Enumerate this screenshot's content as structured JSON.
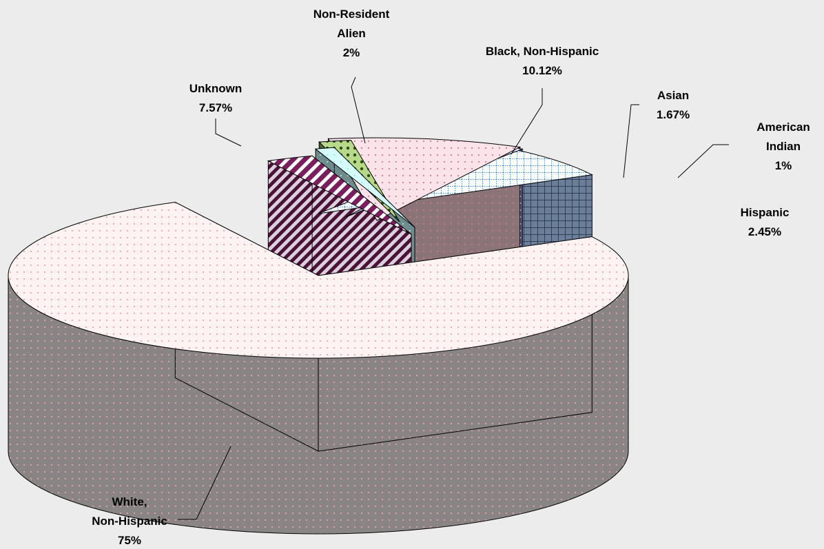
{
  "chart_data": {
    "type": "pie",
    "title": "",
    "slices": [
      {
        "label_lines": [
          "White,",
          "Non-Hispanic",
          "75%"
        ],
        "category": "White, Non-Hispanic",
        "value": 75,
        "value_label": "75%",
        "fill": "#fdf3f3",
        "dot": "#e7a3a8",
        "side": "#8a8585"
      },
      {
        "label_lines": [
          "Hispanic",
          "2.45%"
        ],
        "category": "Hispanic",
        "value": 2.45,
        "value_label": "2.45%",
        "fill": "#7a1f5e",
        "dot": "#ffffff",
        "side": "#4a1238"
      },
      {
        "label_lines": [
          "American",
          "Indian",
          "1%"
        ],
        "category": "American Indian",
        "value": 1,
        "value_label": "1%",
        "fill": "#d5fbfb",
        "dot": "#9be6ea",
        "side": "#6f8b8b"
      },
      {
        "label_lines": [
          "Asian",
          "1.67%"
        ],
        "category": "Asian",
        "value": 1.67,
        "value_label": "1.67%",
        "fill": "#b9d98a",
        "dot": "#2a4a14",
        "side": "#4d6630"
      },
      {
        "label_lines": [
          "Black, Non-Hispanic",
          "10.12%"
        ],
        "category": "Black, Non-Hispanic",
        "value": 10.12,
        "value_label": "10.12%",
        "fill": "#fbe3ea",
        "dot": "#c97a90",
        "side": "#8b7478"
      },
      {
        "label_lines": [
          "Non-Resident",
          "Alien",
          "2%"
        ],
        "category": "Non-Resident Alien",
        "value": 2,
        "value_label": "2%",
        "fill": "#b7b9fb",
        "dot": "#ffffff",
        "side": "#5b5d92"
      },
      {
        "label_lines": [
          "Unknown",
          "7.57%"
        ],
        "category": "Unknown",
        "value": 7.57,
        "value_label": "7.57%",
        "fill": "#ffffff",
        "dot": "#4a8fd6",
        "side": "#6b7f99"
      }
    ],
    "legend": "none",
    "grid": false
  }
}
